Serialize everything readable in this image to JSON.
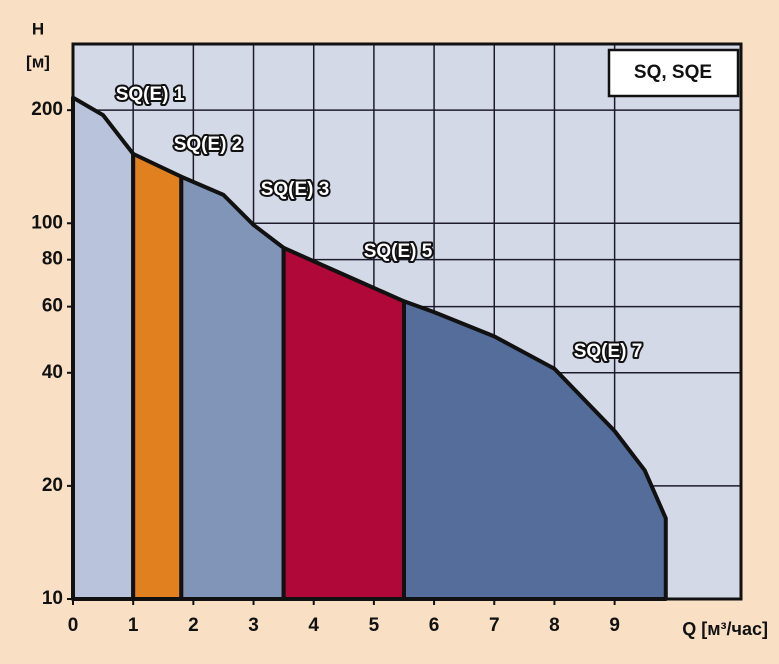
{
  "chart_data": {
    "type": "area",
    "y_label": "H",
    "y_unit": "[м]",
    "x_label": "Q [м³/час]",
    "inset_title": "SQ, SQE",
    "log_y": true,
    "grid": true,
    "xlim": [
      0,
      11.1
    ],
    "xticks": [
      0,
      1,
      2,
      3,
      4,
      5,
      6,
      7,
      8,
      9
    ],
    "ylim": [
      10,
      300
    ],
    "yticks": [
      10,
      20,
      40,
      60,
      80,
      100,
      200
    ],
    "series": [
      {
        "name": "SQ(E) 1",
        "color": "#b9c3dc",
        "x": [
          0,
          0.5,
          1
        ],
        "values": [
          216,
          194,
          153
        ]
      },
      {
        "name": "SQ(E) 2",
        "color": "#e0801f",
        "x": [
          1,
          1.8
        ],
        "values": [
          153,
          133
        ]
      },
      {
        "name": "SQ(E) 3",
        "color": "#8195b9",
        "x": [
          1.8,
          2.5,
          3,
          3.5
        ],
        "values": [
          133,
          119,
          99,
          86
        ]
      },
      {
        "name": "SQ(E) 5",
        "color": "#b00838",
        "x": [
          3.5,
          4.5,
          5.5
        ],
        "values": [
          86,
          73,
          62
        ]
      },
      {
        "name": "SQ(E) 7",
        "color": "#546d9a",
        "x": [
          5.5,
          6,
          7,
          8,
          9,
          9.5,
          9.85
        ],
        "values": [
          62,
          58,
          50,
          41,
          28,
          22,
          16.4
        ]
      }
    ]
  }
}
